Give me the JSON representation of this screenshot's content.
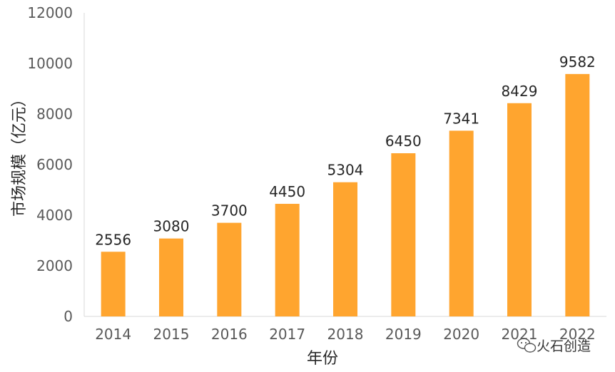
{
  "chart_data": {
    "type": "bar",
    "categories": [
      "2014",
      "2015",
      "2016",
      "2017",
      "2018",
      "2019",
      "2020",
      "2021",
      "2022"
    ],
    "values": [
      2556,
      3080,
      3700,
      4450,
      5304,
      6450,
      7341,
      8429,
      9582
    ],
    "data_labels": [
      "2556",
      "3080",
      "3700",
      "4450",
      "5304",
      "6450",
      "7341",
      "8429",
      "9582"
    ],
    "title": "",
    "xlabel": "年份",
    "ylabel": "市场规模（亿元）",
    "ylim": [
      0,
      12000
    ],
    "yticks": [
      "0",
      "2000",
      "4000",
      "6000",
      "8000",
      "10000",
      "12000"
    ],
    "grid": false,
    "bar_color": "#FFA52F"
  },
  "watermark": {
    "icon": "wechat-icon",
    "text": "火石创造"
  }
}
